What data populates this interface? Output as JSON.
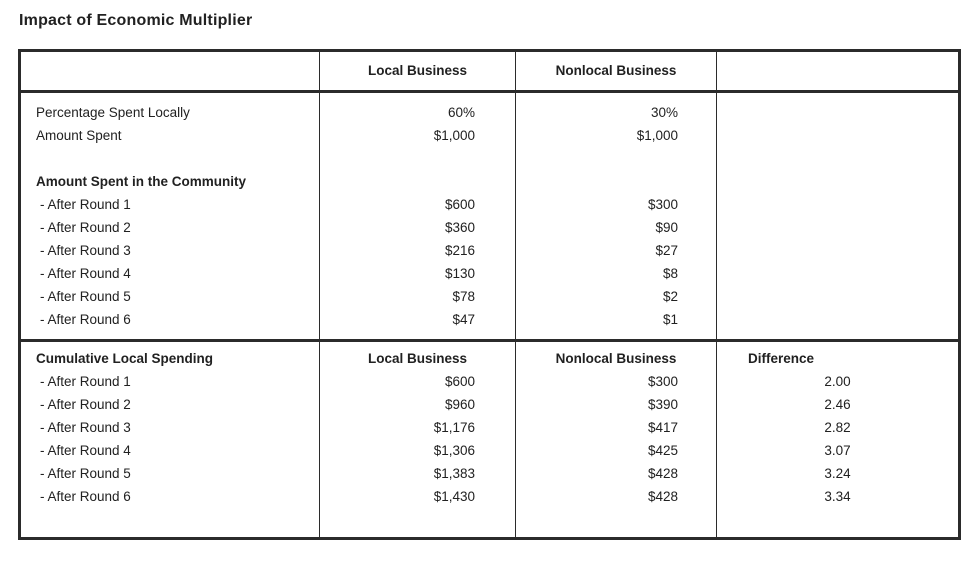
{
  "page": {
    "title": "Impact of Economic Multiplier"
  },
  "table": {
    "header_row": {
      "col1": "",
      "local": "Local Business",
      "nonlocal": "Nonlocal Business",
      "col4": ""
    },
    "section1": {
      "rows_intro": [
        {
          "label": "Percentage Spent Locally",
          "local": "60%",
          "nonlocal": "30%"
        },
        {
          "label": "Amount Spent",
          "local": "$1,000",
          "nonlocal": "$1,000"
        }
      ],
      "subheading": "Amount Spent in the Community",
      "round_rows": [
        {
          "label": "- After Round 1",
          "local": "$600",
          "nonlocal": "$300"
        },
        {
          "label": "- After Round 2",
          "local": "$360",
          "nonlocal": "$90"
        },
        {
          "label": "- After Round 3",
          "local": "$216",
          "nonlocal": "$27"
        },
        {
          "label": "- After Round 4",
          "local": "$130",
          "nonlocal": "$8"
        },
        {
          "label": "- After Round 5",
          "local": "$78",
          "nonlocal": "$2"
        },
        {
          "label": "- After Round 6",
          "local": "$47",
          "nonlocal": "$1"
        }
      ]
    },
    "section2": {
      "heading": "Cumulative Local Spending",
      "local_header": "Local Business",
      "nonlocal_header": "Nonlocal Business",
      "difference_header": "Difference",
      "round_rows": [
        {
          "label": "- After Round 1",
          "local": "$600",
          "nonlocal": "$300",
          "difference": "2.00"
        },
        {
          "label": "- After Round 2",
          "local": "$960",
          "nonlocal": "$390",
          "difference": "2.46"
        },
        {
          "label": "- After Round 3",
          "local": "$1,176",
          "nonlocal": "$417",
          "difference": "2.82"
        },
        {
          "label": "- After Round 4",
          "local": "$1,306",
          "nonlocal": "$425",
          "difference": "3.07"
        },
        {
          "label": "- After Round 5",
          "local": "$1,383",
          "nonlocal": "$428",
          "difference": "3.24"
        },
        {
          "label": "- After Round 6",
          "local": "$1,430",
          "nonlocal": "$428",
          "difference": "3.34"
        }
      ]
    },
    "colors": {
      "text": "#212121",
      "border": "#2b2b2b",
      "background": "#ffffff"
    }
  }
}
